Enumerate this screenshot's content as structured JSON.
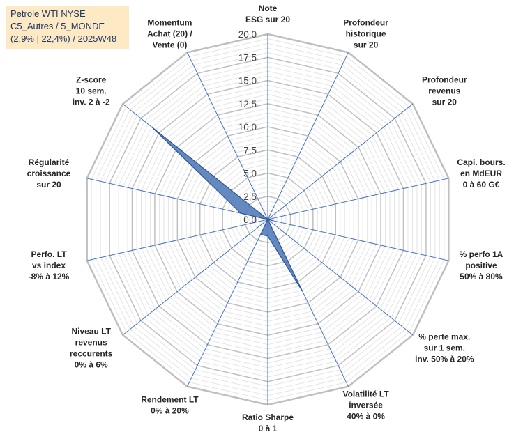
{
  "header": {
    "line1": "Petrole WTI NYSE",
    "line2": "C5_Autres / 5_MONDE",
    "line3": "(2,9% | 22,4%) / 2025W48"
  },
  "colors": {
    "series_fill": "#4f7ab8",
    "series_stroke": "#2e5597",
    "spoke": "#4472c4",
    "grid_major": "#bfbfbf",
    "grid_minor": "#e4e4e4",
    "header_bg": "#fde9c4"
  },
  "chart_data": {
    "type": "radar",
    "title": "",
    "rlim": [
      0,
      20
    ],
    "tick_values": [
      0,
      2.5,
      5,
      7.5,
      10,
      12.5,
      15,
      17.5,
      20
    ],
    "tick_labels": [
      "0,0",
      "2,5",
      "5,0",
      "7,5",
      "10,0",
      "12,5",
      "15,0",
      "17,5",
      "20,0"
    ],
    "categories": [
      [
        "Note",
        "ESG sur 20"
      ],
      [
        "Profondeur",
        "historique",
        "sur 20"
      ],
      [
        "Profondeur",
        "revenus",
        "sur 20"
      ],
      [
        "Capi. bours.",
        "en MdEUR",
        "0 à 60 G€"
      ],
      [
        "% perfo 1A",
        "positive",
        "50% à 80%"
      ],
      [
        "% perte max.",
        "sur 1 sem.",
        "inv. 50% à 20%"
      ],
      [
        "Volatilité LT",
        "inversée",
        "40% à 0%"
      ],
      [
        "Ratio Sharpe",
        "0 à 1"
      ],
      [
        "Rendement LT",
        "0% à 20%"
      ],
      [
        "Niveau LT",
        "revenus",
        "reccurents",
        "0% à 6%"
      ],
      [
        "Perfo. LT",
        "vs index",
        "-8% à 12%"
      ],
      [
        "Régularité",
        "croissance",
        "sur 20"
      ],
      [
        "Z-score",
        "10 sem.",
        "inv. 2 à -2"
      ],
      [
        "Momentum",
        "Achat (20) /",
        "Vente (0)"
      ]
    ],
    "series": [
      {
        "values": [
          0,
          0,
          0,
          0,
          0.5,
          0,
          8.6,
          1.8,
          1.8,
          0,
          0,
          3.0,
          16.0,
          0
        ]
      }
    ],
    "grid": true,
    "legend": "none"
  }
}
